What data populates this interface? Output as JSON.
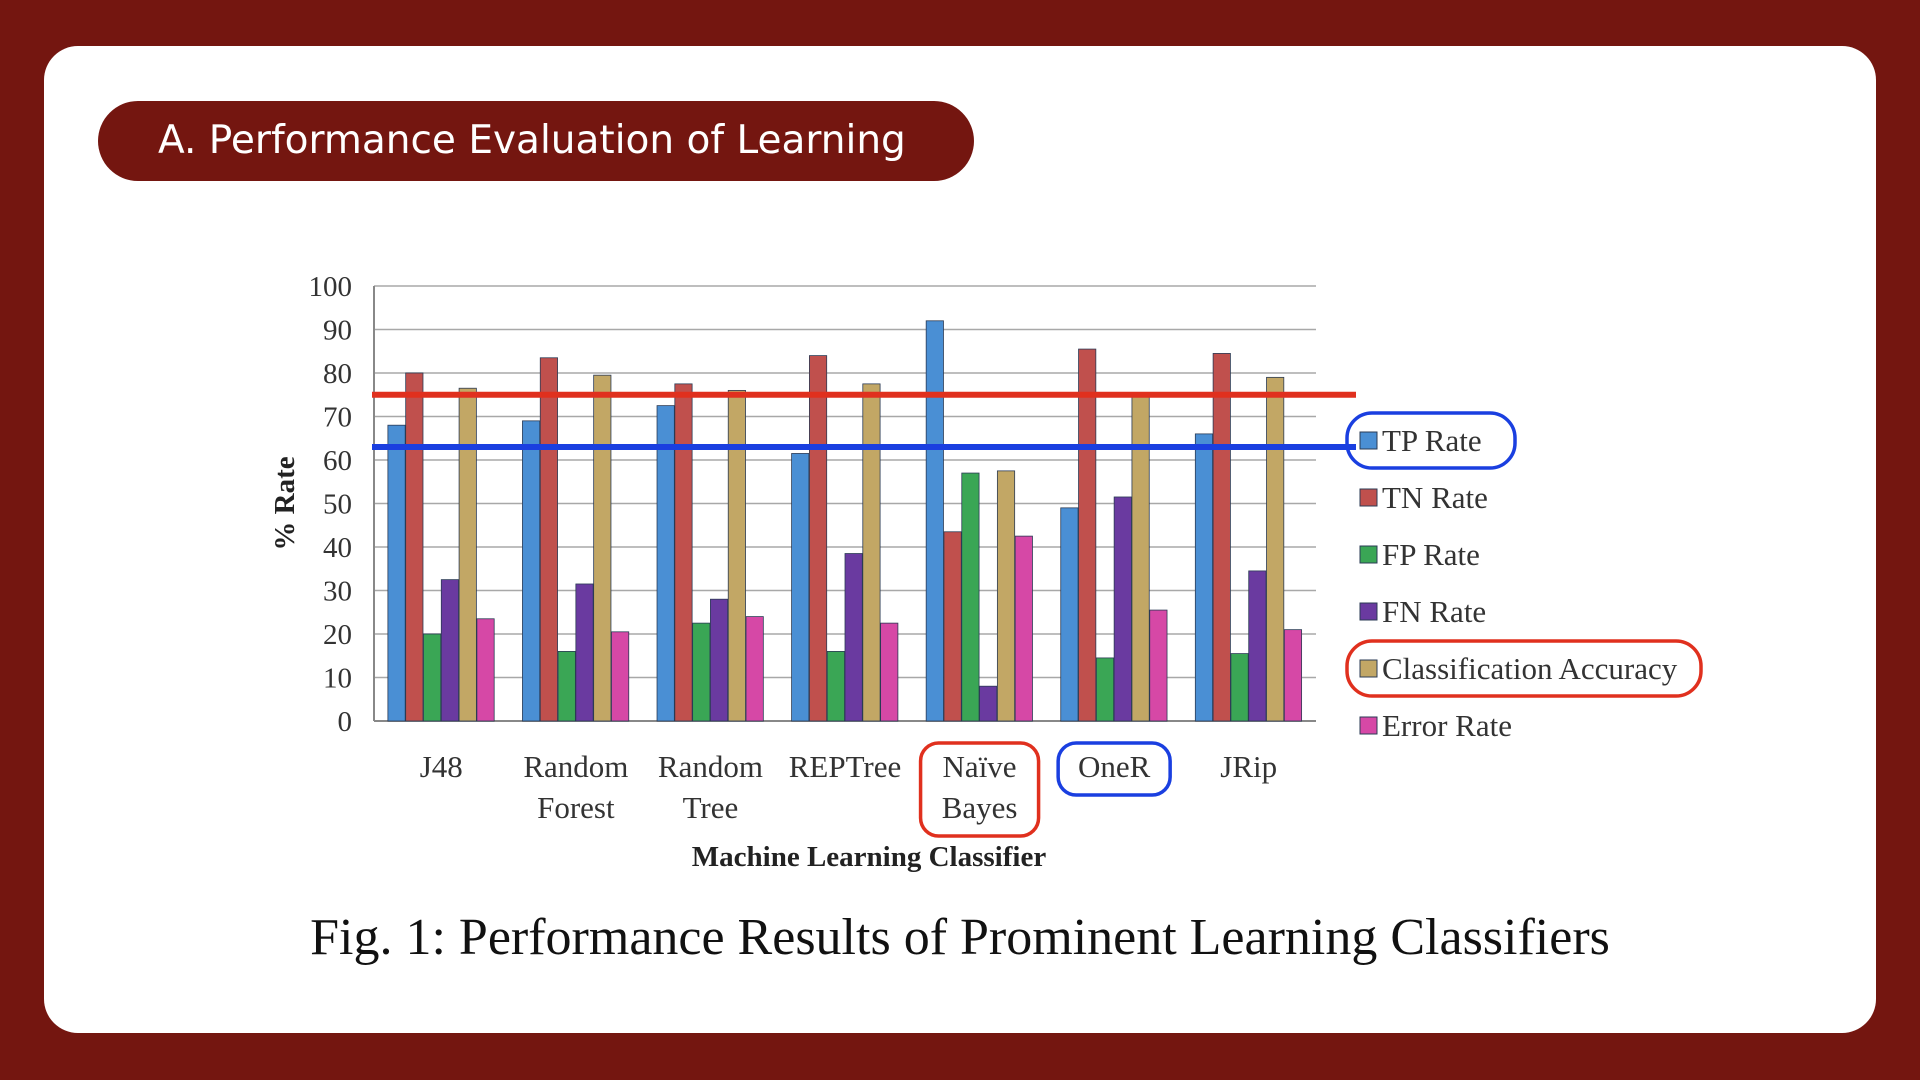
{
  "section_title": "A. Performance Evaluation of Learning",
  "caption": "Fig. 1: Performance Results of Prominent Learning Classifiers",
  "chart_data": {
    "type": "bar",
    "categories": [
      [
        "J48"
      ],
      [
        "Random",
        "Forest"
      ],
      [
        "Random",
        "Tree"
      ],
      [
        "REPTree"
      ],
      [
        "Naïve",
        "Bayes"
      ],
      [
        "OneR"
      ],
      [
        "JRip"
      ]
    ],
    "series": [
      {
        "name": "TP Rate",
        "color": "#4a8fd4",
        "values": [
          68,
          69,
          72.5,
          61.5,
          92,
          49,
          66
        ]
      },
      {
        "name": "TN Rate",
        "color": "#c0504d",
        "values": [
          80,
          83.5,
          77.5,
          84,
          43.5,
          85.5,
          84.5
        ]
      },
      {
        "name": "FP Rate",
        "color": "#3aa655",
        "values": [
          20,
          16,
          22.5,
          16,
          57,
          14.5,
          15.5
        ]
      },
      {
        "name": "FN Rate",
        "color": "#6a3aa0",
        "values": [
          32.5,
          31.5,
          28,
          38.5,
          8,
          51.5,
          34.5
        ]
      },
      {
        "name": "Classification Accuracy",
        "color": "#c2a765",
        "values": [
          76.5,
          79.5,
          76,
          77.5,
          57.5,
          75,
          79
        ]
      },
      {
        "name": "Error Rate",
        "color": "#d648a6",
        "values": [
          23.5,
          20.5,
          24,
          22.5,
          42.5,
          25.5,
          21
        ]
      }
    ],
    "yticks": [
      0,
      10,
      20,
      30,
      40,
      50,
      60,
      70,
      80,
      90,
      100
    ],
    "ylim": [
      0,
      100
    ],
    "xlabel": "Machine Learning Classifier",
    "ylabel": "% Rate",
    "grid": true,
    "legend_position": "right",
    "reference_lines": [
      {
        "value": 75,
        "color": "#e0301e"
      },
      {
        "value": 63,
        "color": "#1a3fe0"
      }
    ],
    "highlighted_legend": [
      {
        "series": "TP Rate",
        "color": "#1a3fe0"
      },
      {
        "series": "Classification Accuracy",
        "color": "#e0301e"
      }
    ],
    "highlighted_categories": [
      {
        "category": "Naïve Bayes",
        "color": "#e0301e"
      },
      {
        "category": "OneR",
        "color": "#1a3fe0"
      }
    ]
  }
}
